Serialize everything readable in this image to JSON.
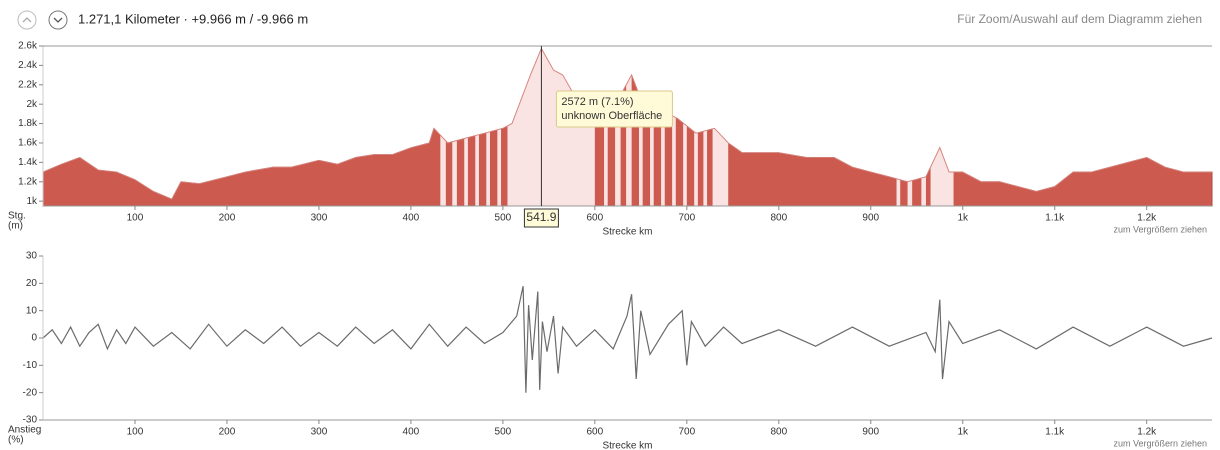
{
  "header": {
    "summary": "1.271,1 Kilometer · +9.966 m / -9.966 m",
    "hint": "Für Zoom/Auswahl auf dem Diagramm ziehen"
  },
  "chart_data": [
    {
      "type": "area",
      "color": "#cd5a4e",
      "y_label": [
        "Stg.",
        "(m)"
      ],
      "x_label": "Strecke km",
      "note": "zum Vergrößern ziehen",
      "x": [
        0,
        20,
        40,
        60,
        80,
        100,
        120,
        140,
        150,
        170,
        200,
        220,
        250,
        270,
        300,
        320,
        340,
        360,
        380,
        400,
        420,
        425,
        440,
        460,
        480,
        500,
        510,
        520,
        530,
        541.9,
        555,
        565,
        580,
        600,
        620,
        640,
        650,
        670,
        690,
        710,
        730,
        745,
        760,
        800,
        830,
        860,
        880,
        900,
        920,
        940,
        960,
        975,
        985,
        1000,
        1020,
        1040,
        1060,
        1080,
        1100,
        1120,
        1140,
        1160,
        1180,
        1200,
        1220,
        1240,
        1271
      ],
      "values": [
        1300,
        1380,
        1450,
        1320,
        1300,
        1220,
        1100,
        1020,
        1200,
        1180,
        1250,
        1300,
        1350,
        1350,
        1420,
        1380,
        1450,
        1480,
        1480,
        1550,
        1600,
        1750,
        1600,
        1650,
        1700,
        1750,
        1800,
        2050,
        2300,
        2572,
        2350,
        2300,
        2050,
        1900,
        1950,
        2300,
        2050,
        1950,
        1850,
        1700,
        1750,
        1600,
        1500,
        1500,
        1450,
        1450,
        1350,
        1300,
        1250,
        1200,
        1250,
        1550,
        1300,
        1300,
        1200,
        1200,
        1150,
        1100,
        1150,
        1300,
        1300,
        1350,
        1400,
        1450,
        1350,
        1300,
        1300
      ],
      "highlight_ranges": [
        [
          432,
          438
        ],
        [
          445,
          450
        ],
        [
          458,
          462
        ],
        [
          470,
          474
        ],
        [
          482,
          486
        ],
        [
          494,
          498
        ],
        [
          505,
          600
        ],
        [
          610,
          614
        ],
        [
          622,
          628
        ],
        [
          634,
          640
        ],
        [
          648,
          652
        ],
        [
          660,
          664
        ],
        [
          672,
          676
        ],
        [
          684,
          688
        ],
        [
          696,
          700
        ],
        [
          708,
          712
        ],
        [
          718,
          722
        ],
        [
          728,
          745
        ],
        [
          928,
          932
        ],
        [
          940,
          945
        ],
        [
          955,
          960
        ],
        [
          965,
          990
        ]
      ],
      "cursor": {
        "x": 541.9,
        "tooltip": [
          "2572 m (7.1%)",
          "unknown Oberfläche"
        ]
      },
      "xlim": [
        0,
        1271
      ],
      "ylim": [
        950,
        2600
      ],
      "xticks": [
        100,
        200,
        300,
        400,
        500,
        600,
        700,
        800,
        900,
        {
          "value": 1000,
          "label": "1k"
        },
        {
          "value": 1100,
          "label": "1.1k"
        },
        {
          "value": 1200,
          "label": "1.2k"
        }
      ],
      "yticks": [
        {
          "value": 1000,
          "label": "1k"
        },
        {
          "value": 1200,
          "label": "1.2k"
        },
        {
          "value": 1400,
          "label": "1.4k"
        },
        {
          "value": 1600,
          "label": "1.6k"
        },
        {
          "value": 1800,
          "label": "1.8k"
        },
        {
          "value": 2000,
          "label": "2k"
        },
        {
          "value": 2200,
          "label": "2.2k"
        },
        {
          "value": 2400,
          "label": "2.4k"
        },
        {
          "value": 2600,
          "label": "2.6k"
        }
      ]
    },
    {
      "type": "line",
      "color": "#6b6b6b",
      "y_label": [
        "Anstieg",
        "(%)"
      ],
      "x_label": "Strecke km",
      "note": "zum Vergrößern ziehen",
      "x": [
        0,
        10,
        20,
        30,
        40,
        50,
        60,
        70,
        80,
        90,
        100,
        120,
        140,
        160,
        180,
        200,
        220,
        240,
        260,
        280,
        300,
        320,
        340,
        360,
        380,
        400,
        420,
        440,
        460,
        480,
        500,
        515,
        522,
        525,
        528,
        532,
        538,
        540,
        543,
        548,
        555,
        560,
        565,
        580,
        600,
        620,
        635,
        640,
        645,
        650,
        660,
        680,
        695,
        700,
        705,
        720,
        740,
        760,
        800,
        840,
        880,
        920,
        960,
        970,
        975,
        978,
        985,
        1000,
        1040,
        1080,
        1120,
        1160,
        1200,
        1240,
        1271
      ],
      "values": [
        0,
        3,
        -2,
        4,
        -3,
        2,
        5,
        -4,
        3,
        -2,
        4,
        -3,
        2,
        -4,
        5,
        -3,
        3,
        -2,
        4,
        -3,
        2,
        -3,
        4,
        -2,
        3,
        -4,
        5,
        -3,
        4,
        -2,
        2,
        8,
        19,
        -20,
        12,
        -8,
        17,
        -19,
        6,
        -5,
        8,
        -13,
        4,
        -3,
        3,
        -4,
        8,
        16,
        -15,
        10,
        -6,
        5,
        10,
        -10,
        6,
        -3,
        4,
        -2,
        3,
        -3,
        4,
        -3,
        2,
        -5,
        14,
        -15,
        6,
        -2,
        3,
        -4,
        4,
        -3,
        4,
        -3,
        0
      ],
      "xlim": [
        0,
        1271
      ],
      "ylim": [
        -30,
        30
      ],
      "xticks": [
        100,
        200,
        300,
        400,
        500,
        600,
        700,
        800,
        900,
        {
          "value": 1000,
          "label": "1k"
        },
        {
          "value": 1100,
          "label": "1.1k"
        },
        {
          "value": 1200,
          "label": "1.2k"
        }
      ],
      "yticks": [
        -30,
        -20,
        -10,
        0,
        10,
        20,
        30
      ]
    }
  ]
}
